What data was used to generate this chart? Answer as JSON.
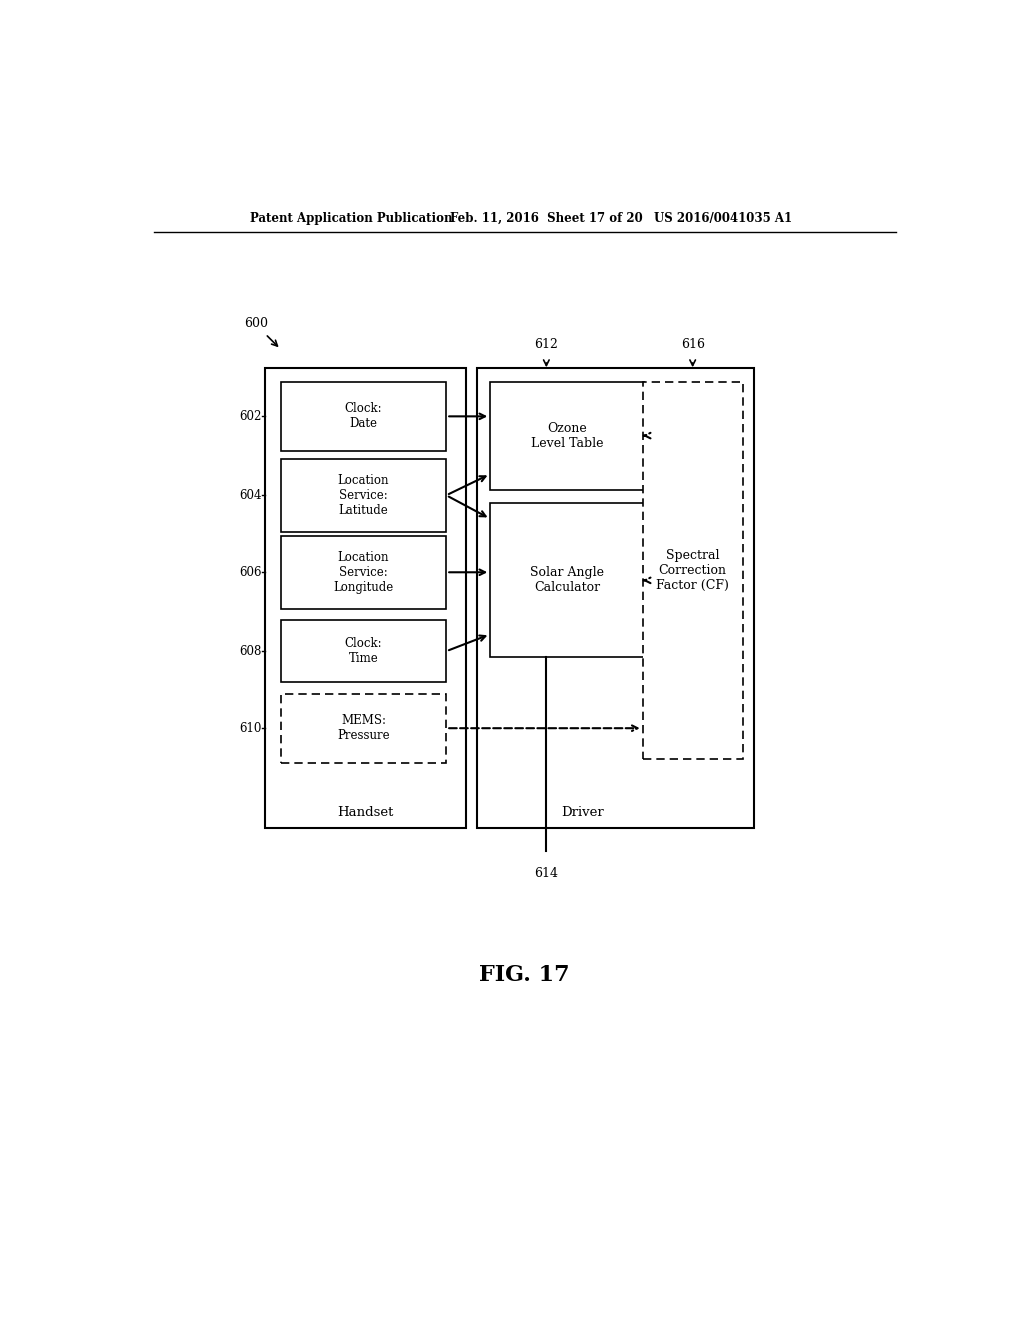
{
  "bg_color": "#ffffff",
  "header_text": "Patent Application Publication",
  "header_date": "Feb. 11, 2016  Sheet 17 of 20",
  "header_patent": "US 2016/0041035 A1",
  "fig_label": "FIG. 17",
  "diagram_label": "600",
  "label_612": "612",
  "label_614": "614",
  "label_616": "616",
  "handset_label": "Handset",
  "driver_label": "Driver",
  "cf_text": "Spectral\nCorrection\nFactor (CF)",
  "box_602_text": "Clock:\nDate",
  "box_604_text": "Location\nService:\nLatitude",
  "box_606_text": "Location\nService:\nLongitude",
  "box_608_text": "Clock:\nTime",
  "box_610_text": "MEMS:\nPressure",
  "ozone_text": "Ozone\nLevel Table",
  "solar_text": "Solar Angle\nCalculator"
}
